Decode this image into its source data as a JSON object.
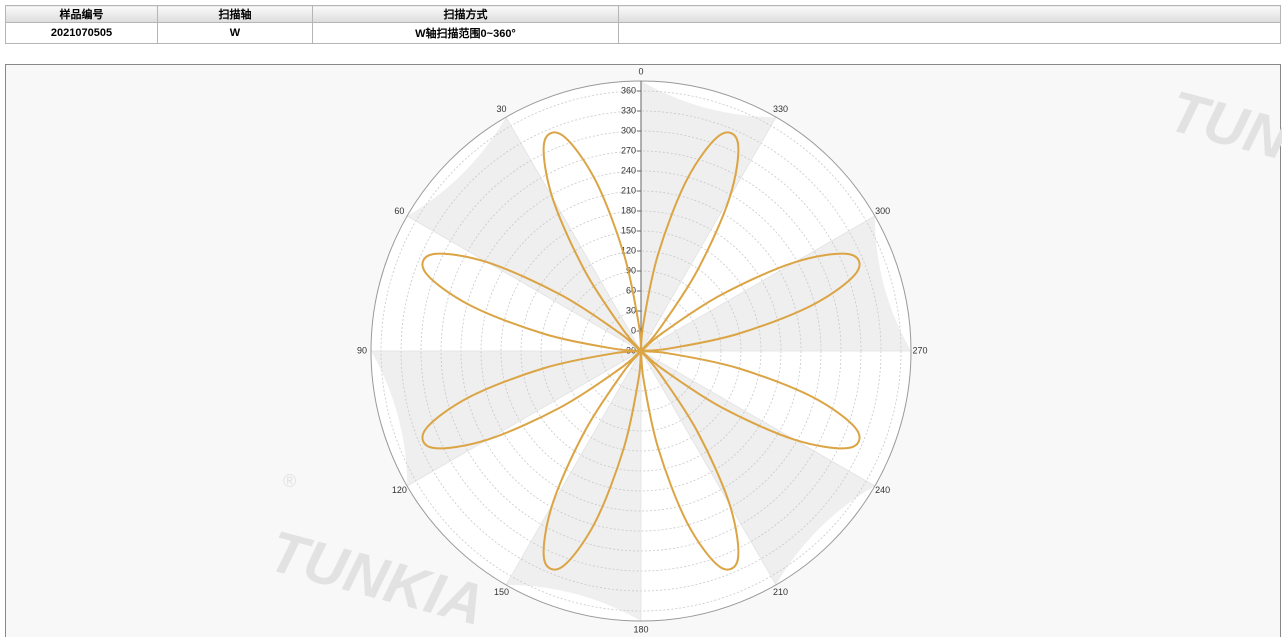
{
  "table": {
    "headers": [
      "样品编号",
      "扫描轴",
      "扫描方式"
    ],
    "rows": [
      [
        "2021070505",
        "W",
        "W轴扫描范围0~360°"
      ]
    ]
  },
  "watermark": {
    "text": "TUNKIA",
    "mark": "®"
  },
  "chart_data": {
    "type": "polar",
    "direction": "counterclockwise",
    "zero": "top",
    "alternating_bands": true,
    "grid": true,
    "thetaticks": [
      0,
      30,
      60,
      90,
      120,
      150,
      180,
      210,
      240,
      270,
      300,
      330
    ],
    "rlim": [
      -30,
      375
    ],
    "rticks": [
      -30,
      0,
      30,
      60,
      90,
      120,
      150,
      180,
      210,
      240,
      270,
      300,
      330,
      360
    ],
    "series": [
      {
        "color": "#dba444",
        "theta": [
          0,
          5,
          10,
          15,
          20,
          25,
          30,
          35,
          40,
          45,
          50,
          55,
          60,
          65,
          70,
          75,
          80,
          85,
          90,
          95,
          100,
          105,
          110,
          115,
          120,
          125,
          130,
          135,
          140,
          145,
          150,
          155,
          160,
          165,
          170,
          175,
          180,
          185,
          190,
          195,
          200,
          205,
          210,
          215,
          220,
          225,
          230,
          235,
          240,
          245,
          250,
          255,
          260,
          265,
          270,
          275,
          280,
          285,
          290,
          295,
          300,
          305,
          310,
          315,
          320,
          325,
          330,
          335,
          340,
          345,
          350,
          355,
          360
        ],
        "values": [
          -30,
          12,
          117,
          236,
          314,
          314,
          236,
          117,
          12,
          -30,
          12,
          117,
          236,
          314,
          314,
          236,
          117,
          12,
          -30,
          12,
          117,
          236,
          314,
          314,
          236,
          117,
          12,
          -30,
          12,
          117,
          236,
          314,
          314,
          236,
          117,
          12,
          -30,
          12,
          117,
          236,
          314,
          314,
          236,
          117,
          12,
          -30,
          12,
          117,
          236,
          314,
          314,
          236,
          117,
          12,
          -30,
          12,
          117,
          236,
          314,
          314,
          236,
          117,
          12,
          -30,
          12,
          117,
          236,
          314,
          314,
          236,
          117,
          12,
          -30
        ]
      }
    ]
  }
}
